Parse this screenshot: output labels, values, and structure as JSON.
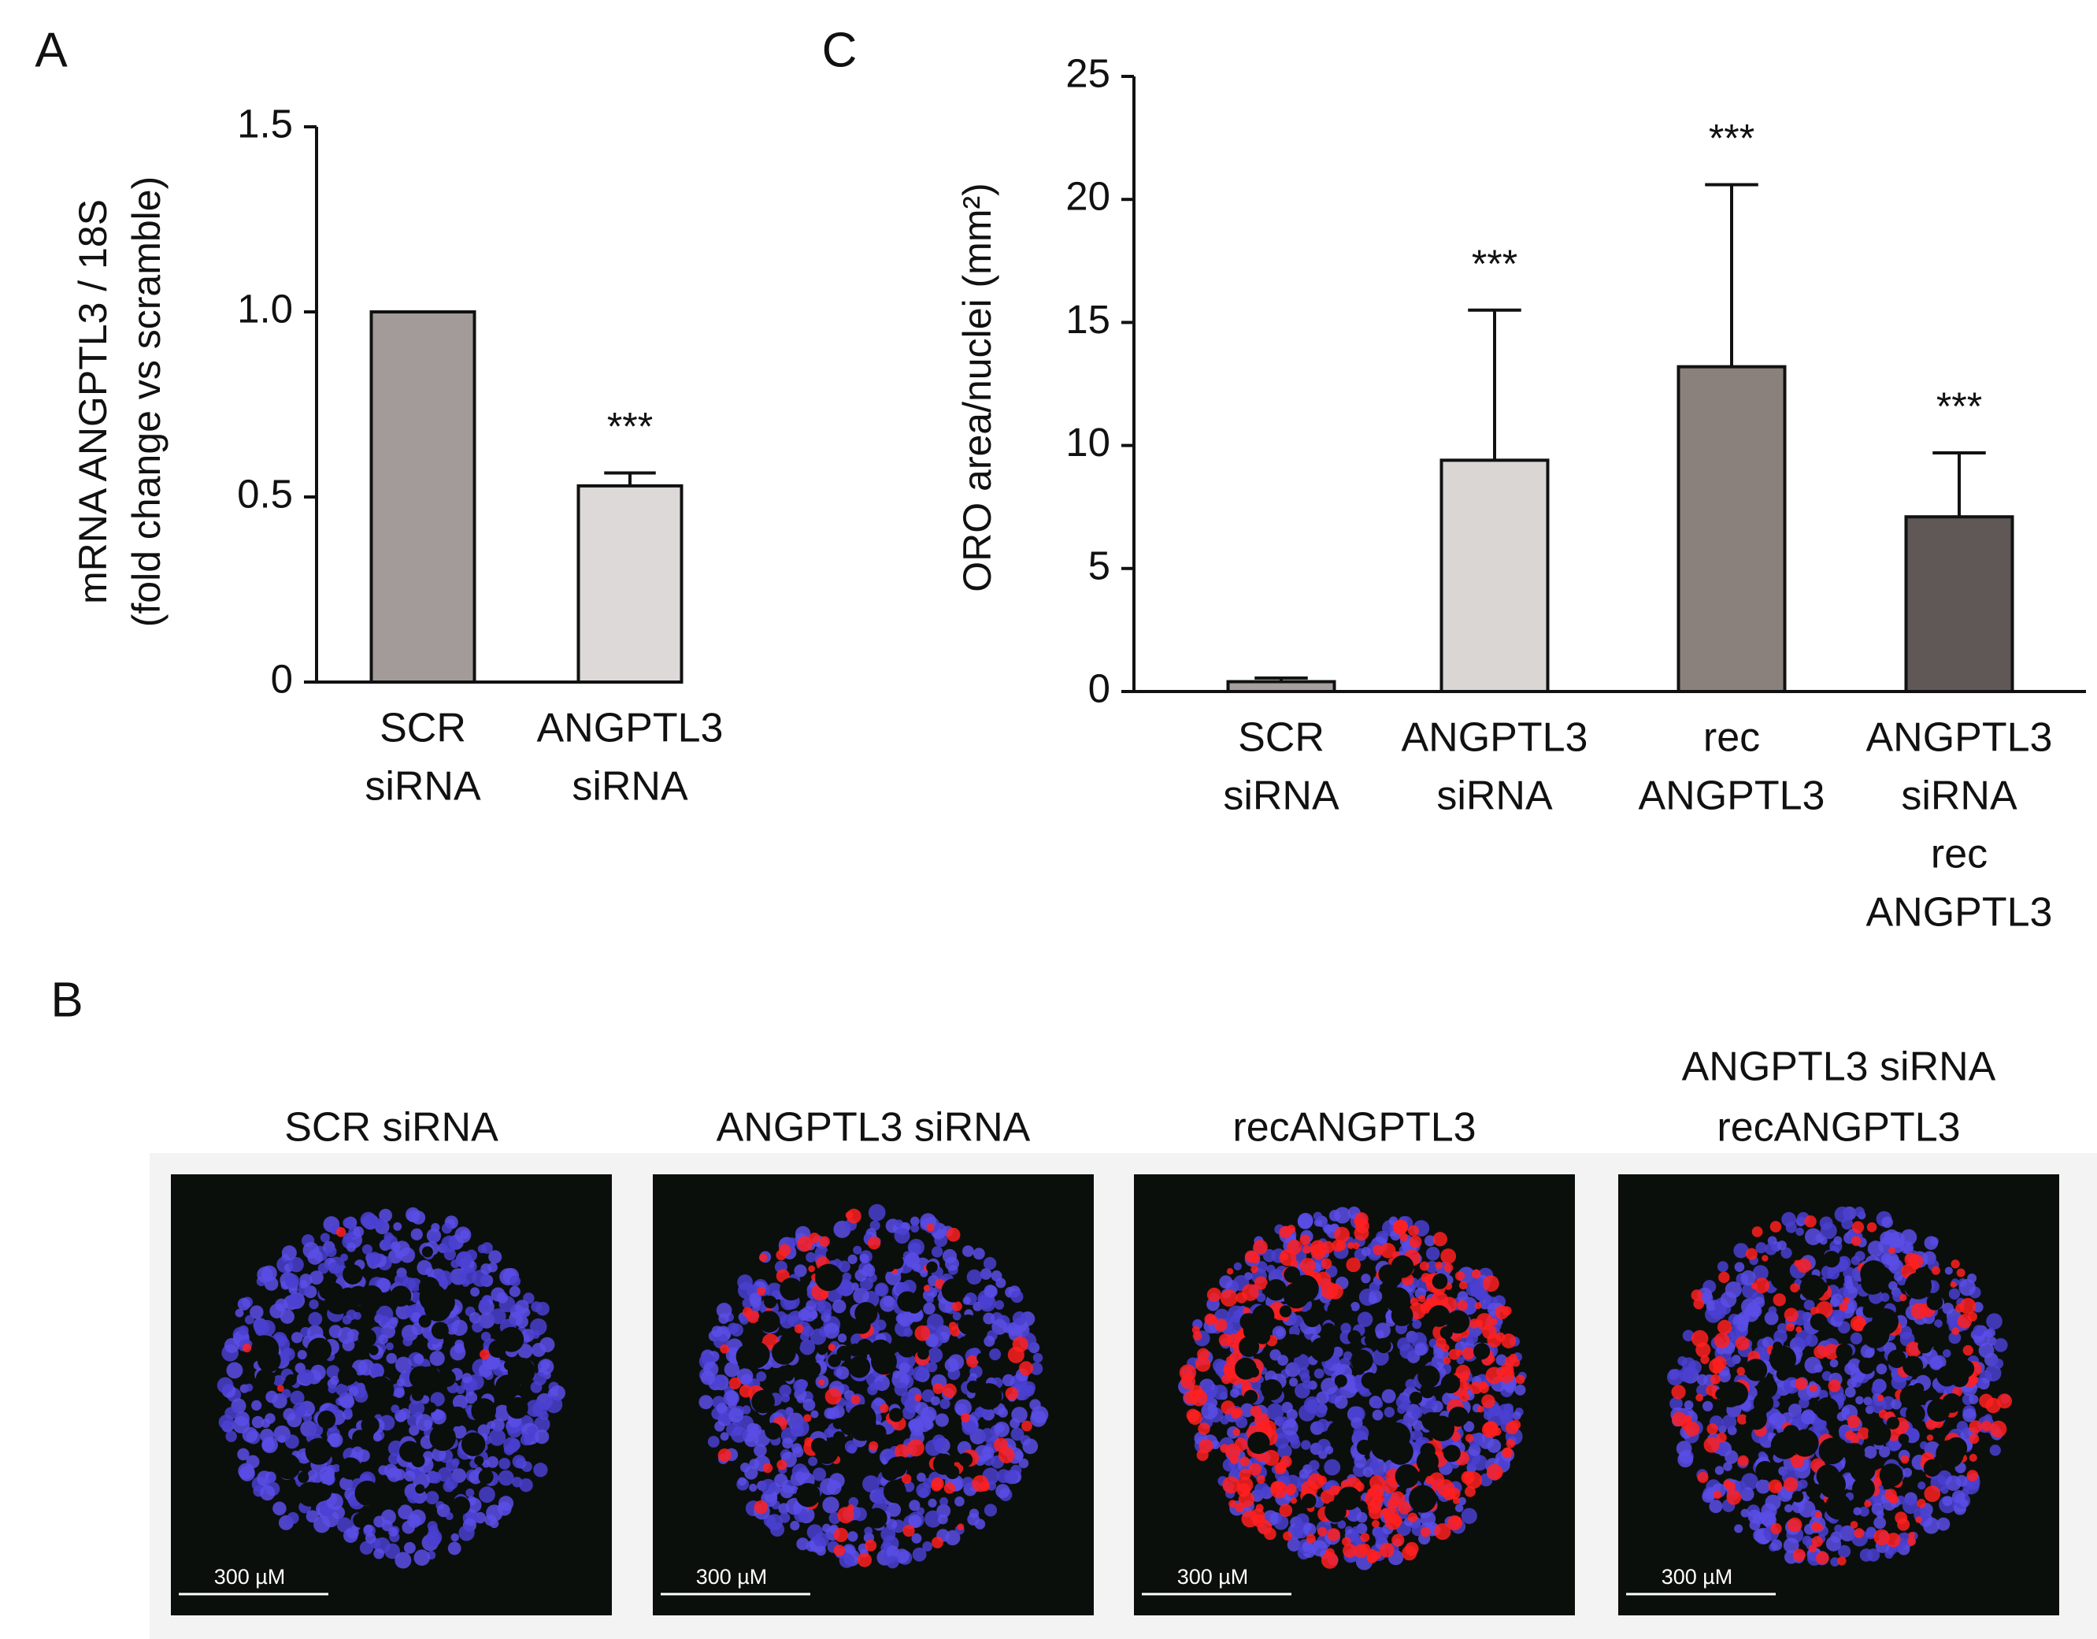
{
  "chart_data": [
    {
      "type": "bar",
      "panel": "A",
      "ylabel": [
        "mRNA ANGPTL3 / 18S",
        "(fold change vs scramble)"
      ],
      "categories": [
        [
          "SCR",
          "siRNA"
        ],
        [
          "ANGPTL3",
          "siRNA"
        ]
      ],
      "values": [
        1.0,
        0.53
      ],
      "error": [
        null,
        0.035
      ],
      "annotations": [
        null,
        "***"
      ],
      "colors": [
        "#a39b99",
        "#dcd9d8"
      ],
      "ylim": [
        0,
        1.5
      ],
      "yticks": [
        0,
        0.5,
        {
          "value": 1,
          "label": "1.0"
        },
        1.5
      ]
    },
    {
      "type": "bar",
      "panel": "C",
      "ylabel": [
        "ORO area/nuclei (mm²)"
      ],
      "categories": [
        [
          "SCR",
          "siRNA"
        ],
        [
          "ANGPTL3",
          "siRNA"
        ],
        [
          "rec",
          "ANGPTL3"
        ],
        [
          "ANGPTL3",
          "siRNA",
          "rec",
          "ANGPTL3"
        ]
      ],
      "values": [
        0.4,
        9.4,
        13.2,
        7.1
      ],
      "error": [
        0.15,
        6.1,
        7.4,
        2.6
      ],
      "annotations": [
        null,
        "***",
        "***",
        "***"
      ],
      "colors": [
        "#a8a09e",
        "#d9d6d4",
        "#8a817c",
        "#5f5856"
      ],
      "ylim": [
        0,
        25
      ],
      "yticks": [
        0,
        5,
        10,
        15,
        20,
        25
      ]
    }
  ],
  "images": {
    "panel": "B",
    "items": [
      {
        "title": [
          "SCR siRNA"
        ],
        "scale_bar": "300 µM"
      },
      {
        "title": [
          "ANGPTL3 siRNA"
        ],
        "scale_bar": "300 µM"
      },
      {
        "title": [
          "recANGPTL3"
        ],
        "scale_bar": "300 µM"
      },
      {
        "title": [
          "ANGPTL3 siRNA",
          "recANGPTL3"
        ],
        "scale_bar": "300 µM"
      }
    ]
  }
}
